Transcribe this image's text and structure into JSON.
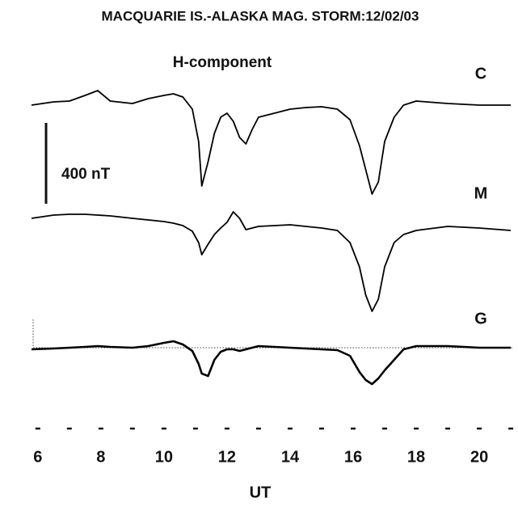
{
  "chart_data": {
    "type": "line",
    "title": "MACQUARIE IS.-ALASKA MAG. STORM:12/02/03",
    "subtitle": "H-component",
    "xlabel": "UT",
    "scale_bar": {
      "value": 400,
      "label": "400 nT"
    },
    "xlim": [
      5.8,
      21.1
    ],
    "xticks": [
      6,
      8,
      10,
      12,
      14,
      16,
      18,
      20
    ],
    "xticks_minor": [
      7,
      9,
      11,
      13,
      15,
      17,
      19,
      21
    ],
    "x": [
      5.8,
      6.5,
      7,
      7.5,
      7.9,
      8.3,
      9,
      9.5,
      10,
      10.3,
      10.6,
      10.9,
      11.1,
      11.2,
      11.4,
      11.6,
      11.8,
      12,
      12.2,
      12.4,
      12.6,
      12.8,
      13,
      13.5,
      14,
      14.5,
      15,
      15.5,
      15.9,
      16.2,
      16.4,
      16.6,
      16.8,
      17,
      17.3,
      17.6,
      18,
      19,
      20,
      21
    ],
    "series": [
      {
        "name": "C",
        "color": "#000000",
        "values": [
          -8,
          8,
          12,
          40,
          64,
          12,
          0,
          24,
          40,
          48,
          32,
          -28,
          -188,
          -408,
          -288,
          -148,
          -68,
          -48,
          -88,
          -168,
          -200,
          -128,
          -68,
          -48,
          -28,
          -20,
          -16,
          -28,
          -80,
          -208,
          -328,
          -448,
          -388,
          -188,
          -68,
          -8,
          12,
          0,
          -8,
          -8
        ]
      },
      {
        "name": "M",
        "color": "#000000",
        "values": [
          -8,
          8,
          12,
          12,
          8,
          4,
          -8,
          -16,
          -24,
          -32,
          -44,
          -72,
          -128,
          -188,
          -136,
          -88,
          -56,
          -28,
          24,
          -8,
          -64,
          -56,
          -48,
          -44,
          -40,
          -48,
          -56,
          -68,
          -128,
          -248,
          -388,
          -468,
          -408,
          -248,
          -128,
          -88,
          -68,
          -48,
          -56,
          -68
        ]
      },
      {
        "name": "G",
        "color": "#000000",
        "values": [
          -8,
          -4,
          0,
          4,
          8,
          4,
          0,
          8,
          24,
          32,
          16,
          -16,
          -80,
          -128,
          -140,
          -60,
          -20,
          -8,
          -8,
          -16,
          -8,
          0,
          8,
          4,
          0,
          -4,
          -8,
          -12,
          -40,
          -120,
          -160,
          -180,
          -152,
          -112,
          -60,
          -8,
          8,
          8,
          0,
          0
        ]
      }
    ]
  }
}
